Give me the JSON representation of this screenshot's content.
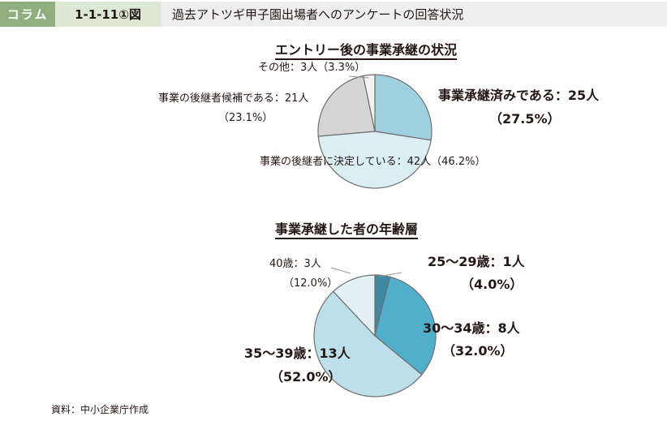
{
  "header": {
    "tag": "コラム",
    "figure_number": "1-1-11①図",
    "title": "過去アトツギ甲子園出場者へのアンケートの回答状況"
  },
  "source": "資料：中小企業庁作成",
  "chart_data": [
    {
      "type": "pie",
      "title": "エントリー後の事業承継の状況",
      "slices": [
        {
          "name": "事業承継済みである",
          "value": 25,
          "percent": 27.5,
          "color": "#9fd0df",
          "label": "事業承継済みである：25人",
          "pct_label": "（27.5%）"
        },
        {
          "name": "事業の後継者に決定している",
          "value": 42,
          "percent": 46.2,
          "color": "#dbeef3",
          "label": "事業の後継者に決定している：42人（46.2%）"
        },
        {
          "name": "事業の後継者候補である",
          "value": 21,
          "percent": 23.1,
          "color": "#d5d5d5",
          "label": "事業の後継者候補である：21人",
          "pct_label": "（23.1%）"
        },
        {
          "name": "その他",
          "value": 3,
          "percent": 3.3,
          "color": "#f2f2f2",
          "label": "その他：3人（3.3%）"
        }
      ]
    },
    {
      "type": "pie",
      "title": "事業承継した者の年齢層",
      "slices": [
        {
          "name": "25～29歳",
          "value": 1,
          "percent": 4.0,
          "color": "#3f8aa3",
          "label": "25～29歳：1人",
          "pct_label": "（4.0%）"
        },
        {
          "name": "30～34歳",
          "value": 8,
          "percent": 32.0,
          "color": "#52afcb",
          "label": "30～34歳：8人",
          "pct_label": "（32.0%）"
        },
        {
          "name": "35～39歳",
          "value": 13,
          "percent": 52.0,
          "color": "#bde0ea",
          "label": "35～39歳：13人",
          "pct_label": "（52.0%）"
        },
        {
          "name": "40歳",
          "value": 3,
          "percent": 12.0,
          "color": "#e3f1f5",
          "label": "40歳：3人",
          "pct_label": "（12.0%）"
        }
      ]
    }
  ]
}
